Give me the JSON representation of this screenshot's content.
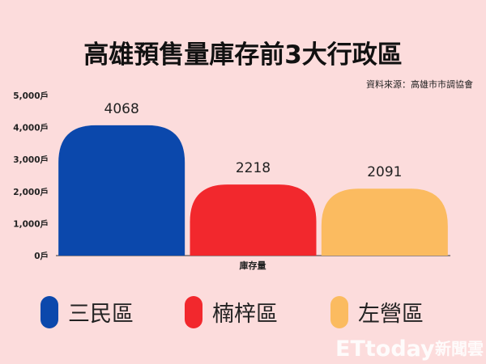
{
  "chart_data": {
    "type": "bar",
    "title": "高雄預售量庫存前3大行政區",
    "source": "資料來源：高雄市市調協會",
    "xlabel": "庫存量",
    "ylabel": "",
    "categories": [
      "三民區",
      "楠梓區",
      "左營區"
    ],
    "values": [
      4068,
      2218,
      2091
    ],
    "colors": [
      "#0b48ac",
      "#f2282d",
      "#fbbb60"
    ],
    "ylim": [
      0,
      5000
    ],
    "yticks": [
      0,
      1000,
      2000,
      3000,
      4000,
      5000
    ],
    "ytick_labels": [
      "0戶",
      "1,000戶",
      "2,000戶",
      "3,000戶",
      "4,000戶",
      "5,000戶"
    ],
    "grid": false,
    "legend_position": "bottom"
  },
  "watermark": {
    "brand": "ETtoday",
    "suffix": "新聞雲"
  }
}
